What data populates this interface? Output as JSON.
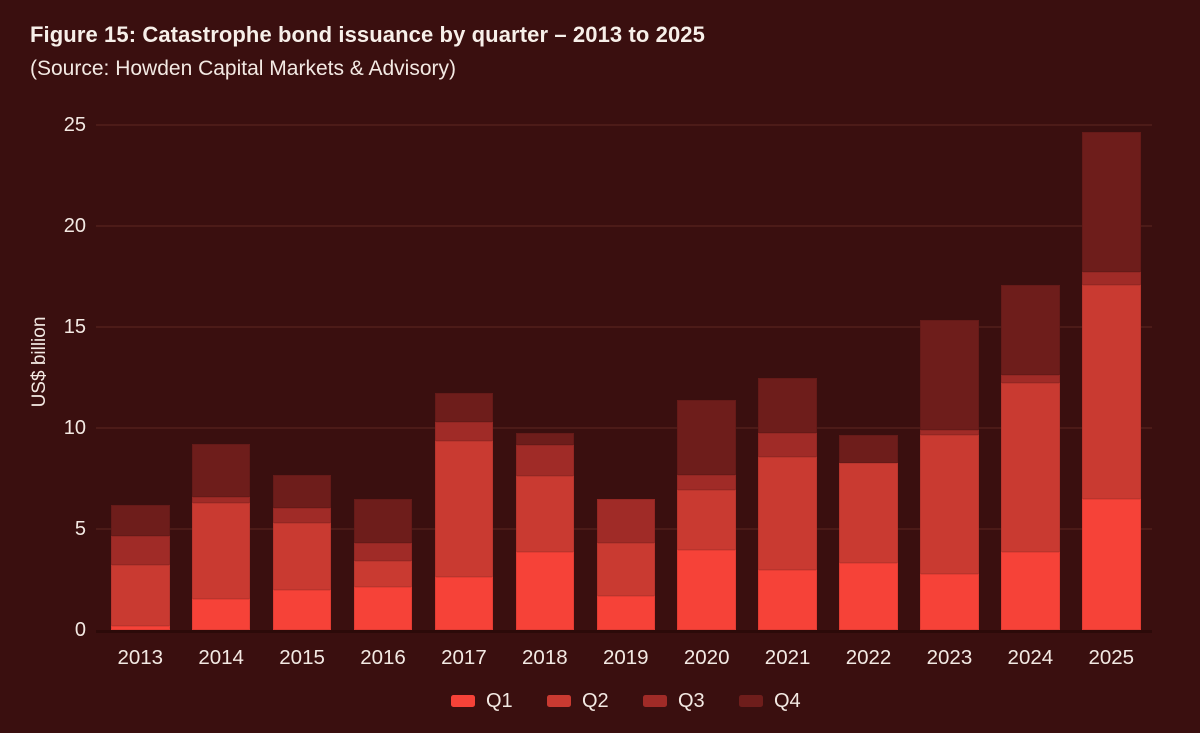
{
  "figure": {
    "title": "Figure 15: Catastrophe bond issuance by quarter – 2013 to 2025",
    "subtitle": "(Source: Howden Capital Markets & Advisory)"
  },
  "colors": {
    "background": "#3A0F0F",
    "text": "#F3E9E3",
    "gridline": "#4C1B18",
    "axis_line": "#2C0A09",
    "q1": "#F64238",
    "q2": "#C93A31",
    "q3": "#A02B27",
    "q4": "#6E1D1B"
  },
  "chart_data": {
    "type": "bar",
    "stacked": true,
    "title": "Figure 15: Catastrophe bond issuance by quarter – 2013 to 2025",
    "subtitle": "(Source: Howden Capital Markets & Advisory)",
    "xlabel": "",
    "ylabel": "US$ billion",
    "ylim": [
      0,
      25
    ],
    "yticks": [
      0,
      5,
      10,
      15,
      20,
      25
    ],
    "grid": true,
    "legend_position": "bottom",
    "categories": [
      "2013",
      "2014",
      "2015",
      "2016",
      "2017",
      "2018",
      "2019",
      "2020",
      "2021",
      "2022",
      "2023",
      "2024",
      "2025"
    ],
    "series": [
      {
        "name": "Q1",
        "color": "#F64238",
        "values": [
          0.2,
          1.55,
          2.0,
          2.15,
          2.6,
          3.85,
          1.7,
          3.95,
          2.95,
          3.3,
          2.75,
          3.85,
          6.5
        ]
      },
      {
        "name": "Q2",
        "color": "#C93A31",
        "values": [
          3.0,
          4.75,
          3.3,
          1.25,
          6.75,
          3.75,
          2.6,
          3.0,
          5.6,
          4.95,
          6.9,
          8.4,
          10.6
        ]
      },
      {
        "name": "Q3",
        "color": "#A02B27",
        "values": [
          1.45,
          0.3,
          0.75,
          0.9,
          0.95,
          1.55,
          2.2,
          0.7,
          1.2,
          0.0,
          0.25,
          0.35,
          0.6
        ]
      },
      {
        "name": "Q4",
        "color": "#6E1D1B",
        "values": [
          1.55,
          2.6,
          1.6,
          2.2,
          1.45,
          0.6,
          0.0,
          3.75,
          2.75,
          1.4,
          5.45,
          4.5,
          6.95
        ]
      }
    ],
    "totals": [
      6.2,
      9.2,
      7.65,
      6.5,
      11.75,
      9.75,
      6.5,
      11.4,
      12.5,
      9.65,
      15.35,
      17.1,
      24.65
    ]
  }
}
